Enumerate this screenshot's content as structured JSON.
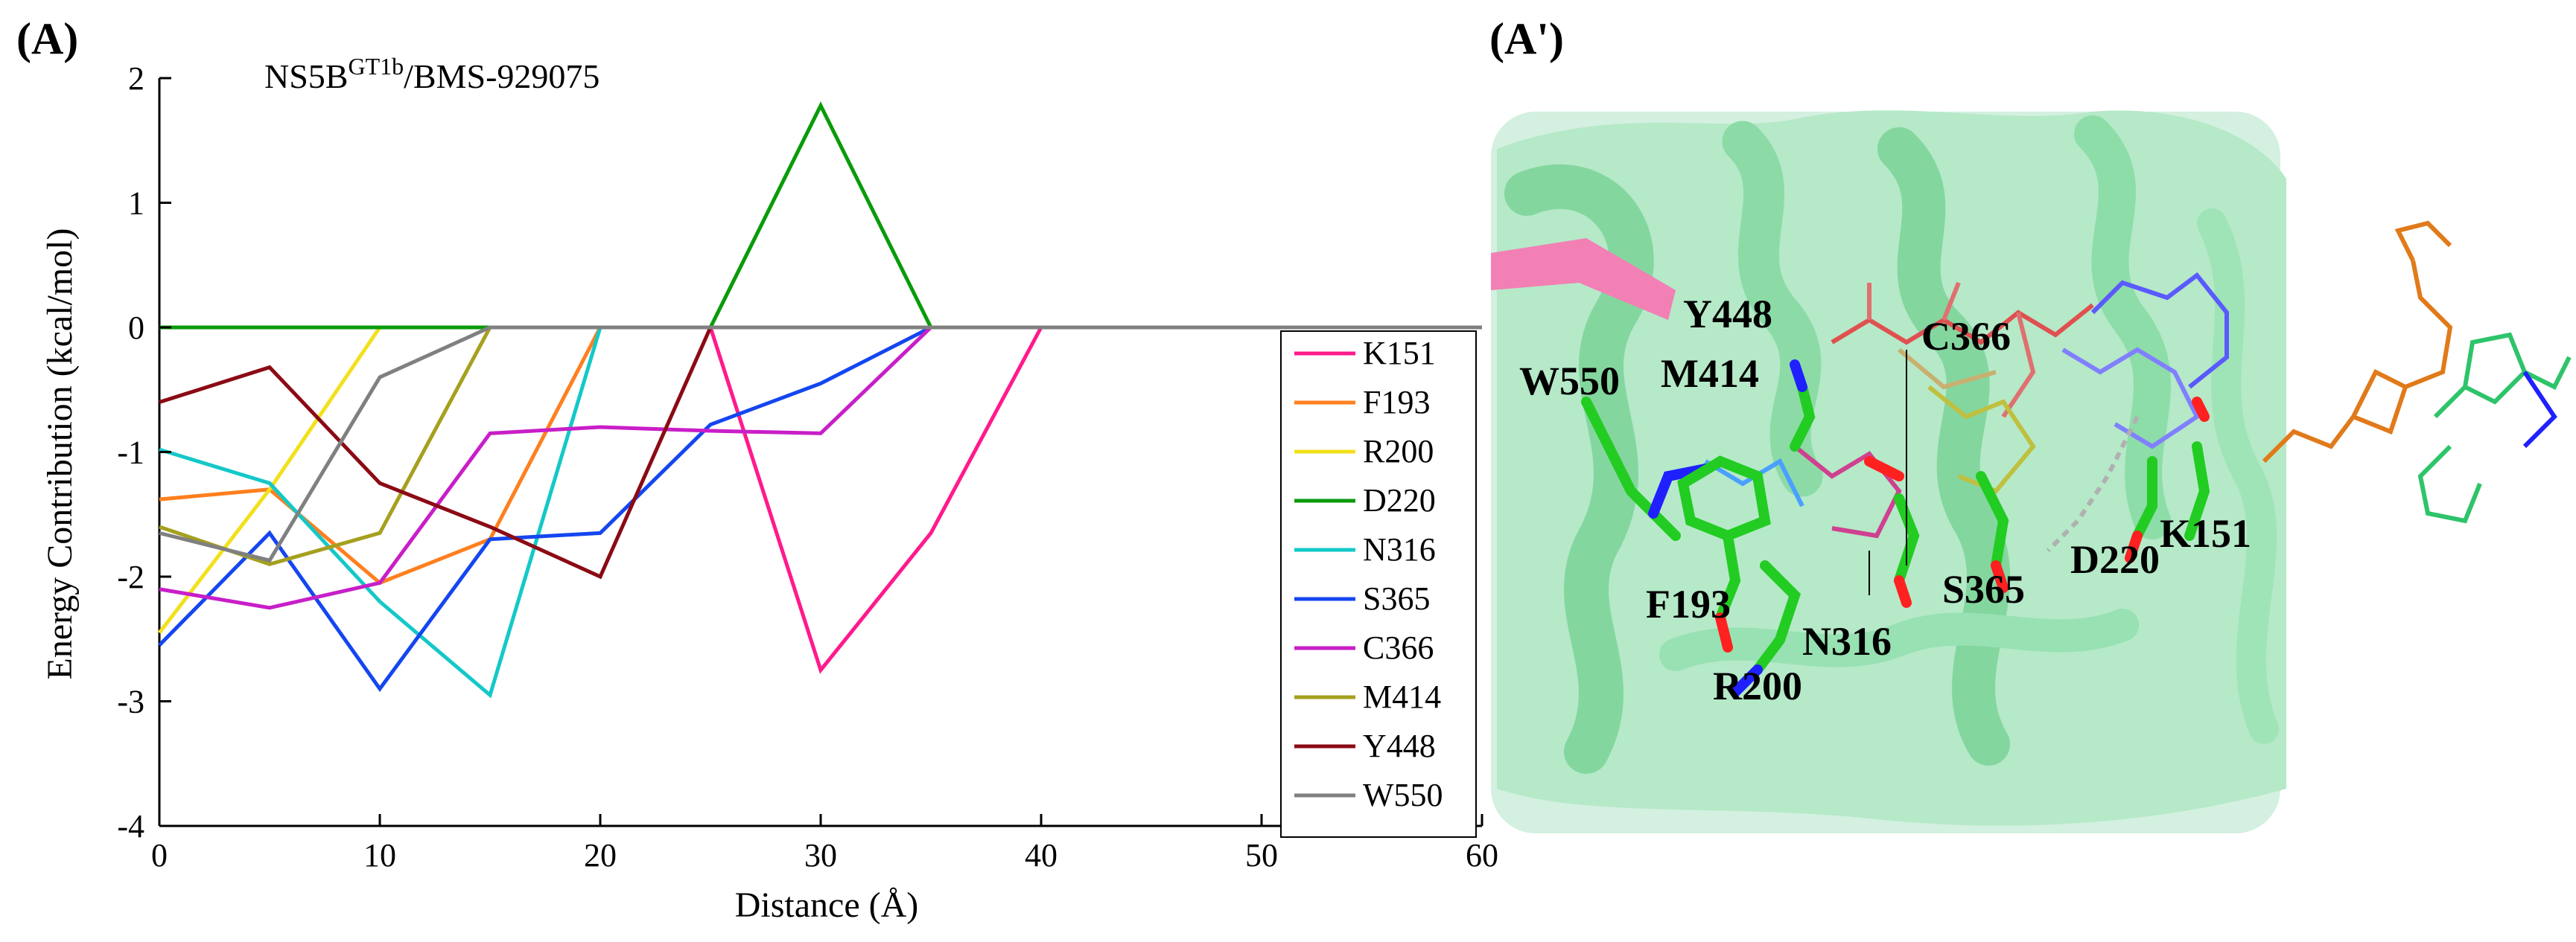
{
  "panels": {
    "left_label": "(A)",
    "right_label": "(A')"
  },
  "chart_data": {
    "type": "line",
    "title": "NS5B^GT1b/BMS-929075",
    "title_parts": {
      "main": "NS5B",
      "superscript": "GT1b",
      "suffix": "/BMS-929075"
    },
    "xlabel": "Distance (Å)",
    "ylabel": "Energy Contribution (kcal/mol)",
    "xlim": [
      0,
      60
    ],
    "ylim": [
      -4,
      2
    ],
    "xticks": [
      0,
      10,
      20,
      30,
      40,
      50,
      60
    ],
    "yticks": [
      -4,
      -3,
      -2,
      -1,
      0,
      1,
      2
    ],
    "grid": false,
    "legend_position": "right",
    "x": [
      0,
      5,
      10,
      15,
      20,
      25,
      30,
      35,
      40,
      45,
      50,
      55,
      60
    ],
    "series": [
      {
        "name": "K151",
        "color": "#ff1a8c",
        "values": [
          0,
          0,
          0,
          0,
          0,
          0,
          -2.75,
          -1.65,
          0,
          0,
          0,
          0,
          0
        ]
      },
      {
        "name": "F193",
        "color": "#ff7f1e",
        "values": [
          -1.38,
          -1.3,
          -2.05,
          -1.7,
          0,
          0,
          0,
          0,
          0,
          0,
          0,
          0,
          0
        ]
      },
      {
        "name": "R200",
        "color": "#f2e01c",
        "values": [
          -2.45,
          -1.3,
          0,
          0,
          0,
          0,
          0,
          0,
          0,
          0,
          0,
          0,
          0
        ]
      },
      {
        "name": "D220",
        "color": "#0a9b0a",
        "values": [
          0,
          0,
          0,
          0,
          0,
          0,
          1.78,
          0,
          0,
          0,
          0,
          0,
          0
        ]
      },
      {
        "name": "N316",
        "color": "#14c8c8",
        "values": [
          -0.98,
          -1.25,
          -2.2,
          -2.95,
          0,
          0,
          0,
          0,
          0,
          0,
          0,
          0,
          0
        ]
      },
      {
        "name": "S365",
        "color": "#1446f0",
        "values": [
          -2.55,
          -1.65,
          -2.9,
          -1.7,
          -1.65,
          -0.78,
          -0.45,
          0,
          0,
          0,
          0,
          0,
          0
        ]
      },
      {
        "name": "C366",
        "color": "#c81ec8",
        "values": [
          -2.1,
          -2.25,
          -2.05,
          -0.85,
          -0.8,
          -0.83,
          -0.85,
          0,
          0,
          0,
          0,
          0,
          0
        ]
      },
      {
        "name": "M414",
        "color": "#a5a01e",
        "values": [
          -1.6,
          -1.9,
          -1.65,
          0,
          0,
          0,
          0,
          0,
          0,
          0,
          0,
          0,
          0
        ]
      },
      {
        "name": "Y448",
        "color": "#8b0a14",
        "values": [
          -0.6,
          -0.32,
          -1.25,
          -1.6,
          -2.0,
          0,
          0,
          0,
          0,
          0,
          0,
          0,
          0
        ]
      },
      {
        "name": "W550",
        "color": "#808080",
        "values": [
          -1.65,
          -1.87,
          -0.4,
          0,
          0,
          0,
          0,
          0,
          0,
          0,
          0,
          0,
          0
        ]
      }
    ]
  },
  "structure": {
    "residue_labels": [
      "Y448",
      "C366",
      "W550",
      "M414",
      "D220",
      "K151",
      "S365",
      "F193",
      "N316",
      "R200"
    ],
    "colors": {
      "protein": "#8fdfa8",
      "protein_dark": "#6fcf8f",
      "sheet": "#f06aa8",
      "stick_carbon": "#22cc22",
      "nitrogen": "#2020ff",
      "oxygen": "#ff2020",
      "ligand_orange": "#e07a1a",
      "ligand_green": "#2ec46a"
    }
  }
}
